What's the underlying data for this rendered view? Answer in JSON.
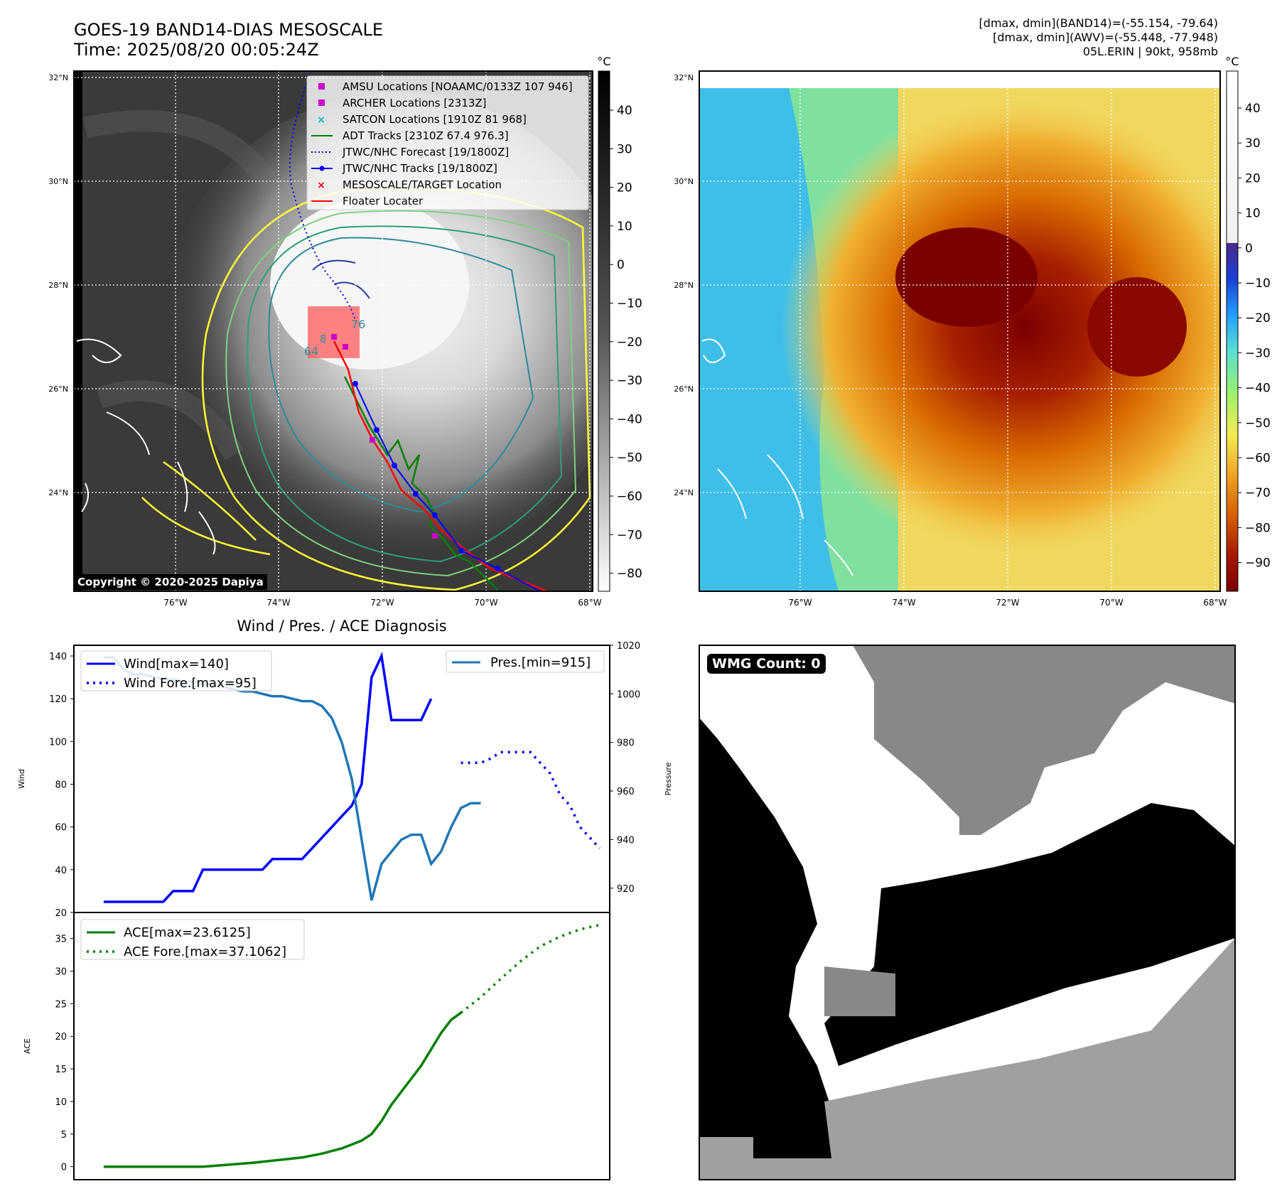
{
  "header": {
    "title": "GOES-19 BAND14-DIAS MESOSCALE",
    "time": "Time: 2025/08/20 00:05:24Z",
    "stats_line1": "[dmax, dmin](BAND14)=(-55.154, -79.64)",
    "stats_line2": "[dmax, dmin](AWV)=(-55.448, -77.948)",
    "storm": "05L.ERIN | 90kt, 958mb"
  },
  "colors": {
    "wind": "#0000ff",
    "pressure": "#1f77b4",
    "ace": "#008000",
    "track_red": "#ff0000",
    "adt": "#008000",
    "magenta": "#cc00cc",
    "teal": "#00b5b5"
  },
  "map": {
    "lat_labels": [
      "32°N",
      "30°N",
      "28°N",
      "26°N",
      "24°N"
    ],
    "lon_labels": [
      "76°W",
      "74°W",
      "72°W",
      "70°W",
      "68°W"
    ],
    "unit": "°C",
    "ir_cbar_ticks": [
      "40",
      "30",
      "20",
      "10",
      "0",
      "−10",
      "−20",
      "−30",
      "−40",
      "−50",
      "−60",
      "−70",
      "−80"
    ],
    "wv_cbar_ticks": [
      "40",
      "30",
      "20",
      "10",
      "0",
      "−10",
      "−20",
      "−30",
      "−40",
      "−50",
      "−60",
      "−70",
      "−80",
      "−90"
    ],
    "copyright": "Copyright © 2020-2025 Dapiya",
    "legend": [
      {
        "label": "AMSU Locations [NOAAMC/0133Z 107 946]",
        "icon": "square-marker",
        "color": "#cc00cc"
      },
      {
        "label": "ARCHER Locations [2313Z]",
        "icon": "square-marker",
        "color": "#cc00cc"
      },
      {
        "label": "SATCON Locations [1910Z 81 968]",
        "icon": "x-marker",
        "color": "#00b5b5"
      },
      {
        "label": "ADT Tracks [2310Z 67.4 976.3]",
        "icon": "solid-line",
        "color": "#008000"
      },
      {
        "label": "JTWC/NHC Forecast [19/1800Z]",
        "icon": "dotted-line",
        "color": "#0000ff"
      },
      {
        "label": "JTWC/NHC Tracks [19/1800Z]",
        "icon": "dot-line",
        "color": "#0000ff"
      },
      {
        "label": "MESOSCALE/TARGET Location",
        "icon": "x-marker",
        "color": "#ff0000"
      },
      {
        "label": "Floater Locater",
        "icon": "solid-line",
        "color": "#ff0000"
      }
    ],
    "contour_labels": [
      "64",
      "76",
      "8"
    ]
  },
  "chart_data": [
    {
      "type": "line",
      "title": "Wind / Pres. / ACE Diagnosis",
      "ylabel": "Wind",
      "ylim": [
        20,
        145
      ],
      "yticks": [
        20,
        40,
        60,
        80,
        100,
        120,
        140
      ],
      "y2label": "Pressure",
      "y2lim": [
        910,
        1020
      ],
      "y2ticks": [
        920,
        940,
        960,
        980,
        1000,
        1020
      ],
      "series": [
        {
          "name": "Wind[max=140]",
          "axis": "left",
          "style": "solid",
          "color": "#0000ff",
          "x": [
            0,
            1,
            2,
            3,
            4,
            5,
            6,
            7,
            8,
            9,
            10,
            11,
            12,
            13,
            14,
            15,
            16,
            17,
            18,
            19,
            20,
            21,
            22,
            23,
            24,
            25,
            26,
            27,
            28,
            29,
            30,
            31,
            32,
            33
          ],
          "values": [
            25,
            25,
            25,
            25,
            25,
            25,
            25,
            30,
            30,
            30,
            40,
            40,
            40,
            40,
            40,
            40,
            40,
            45,
            45,
            45,
            45,
            50,
            55,
            60,
            65,
            70,
            80,
            130,
            140,
            110,
            110,
            110,
            110,
            120
          ]
        },
        {
          "name": "Wind Fore.[max=95]",
          "axis": "left",
          "style": "dotted",
          "color": "#0000ff",
          "x": [
            36,
            37,
            38,
            39,
            40,
            41,
            42,
            43,
            44,
            45,
            46,
            47,
            48,
            49,
            50
          ],
          "values": [
            90,
            90,
            90,
            92,
            95,
            95,
            95,
            95,
            90,
            85,
            75,
            70,
            60,
            55,
            50
          ]
        },
        {
          "name": "Pres.[min=915]",
          "axis": "right",
          "style": "solid",
          "color": "#1f77b4",
          "x": [
            0,
            1,
            2,
            3,
            4,
            5,
            6,
            7,
            8,
            9,
            10,
            11,
            12,
            13,
            14,
            15,
            16,
            17,
            18,
            19,
            20,
            21,
            22,
            23,
            24,
            25,
            26,
            27,
            28,
            29,
            30,
            31,
            32,
            33,
            34,
            35,
            36,
            37,
            38
          ],
          "values": [
            1015,
            1015,
            1010,
            1008,
            1008,
            1007,
            1006,
            1006,
            1005,
            1005,
            1004,
            1004,
            1003,
            1002,
            1001,
            1001,
            1000,
            999,
            999,
            998,
            997,
            997,
            995,
            990,
            980,
            965,
            940,
            915,
            930,
            935,
            940,
            942,
            942,
            930,
            935,
            945,
            953,
            955,
            955
          ]
        }
      ]
    },
    {
      "type": "line",
      "ylabel": "ACE",
      "ylim": [
        -2,
        39
      ],
      "yticks": [
        0,
        5,
        10,
        15,
        20,
        25,
        30,
        35
      ],
      "series": [
        {
          "name": "ACE[max=23.6125]",
          "style": "solid",
          "color": "#008000",
          "x": [
            0,
            5,
            10,
            15,
            20,
            22,
            24,
            26,
            27,
            28,
            29,
            30,
            31,
            32,
            33,
            34,
            35,
            36
          ],
          "values": [
            0,
            0,
            0,
            0.6,
            1.4,
            2.0,
            2.8,
            4.0,
            5.0,
            7.0,
            9.5,
            11.5,
            13.5,
            15.5,
            18.0,
            20.5,
            22.5,
            23.6125
          ]
        },
        {
          "name": "ACE Fore.[max=37.1062]",
          "style": "dotted",
          "color": "#008000",
          "x": [
            36,
            38,
            40,
            42,
            44,
            46,
            48,
            50
          ],
          "values": [
            23.6125,
            26.0,
            28.8,
            31.5,
            33.8,
            35.3,
            36.4,
            37.1062
          ]
        }
      ]
    }
  ],
  "wmg": {
    "count_label": "WMG Count: 0"
  }
}
